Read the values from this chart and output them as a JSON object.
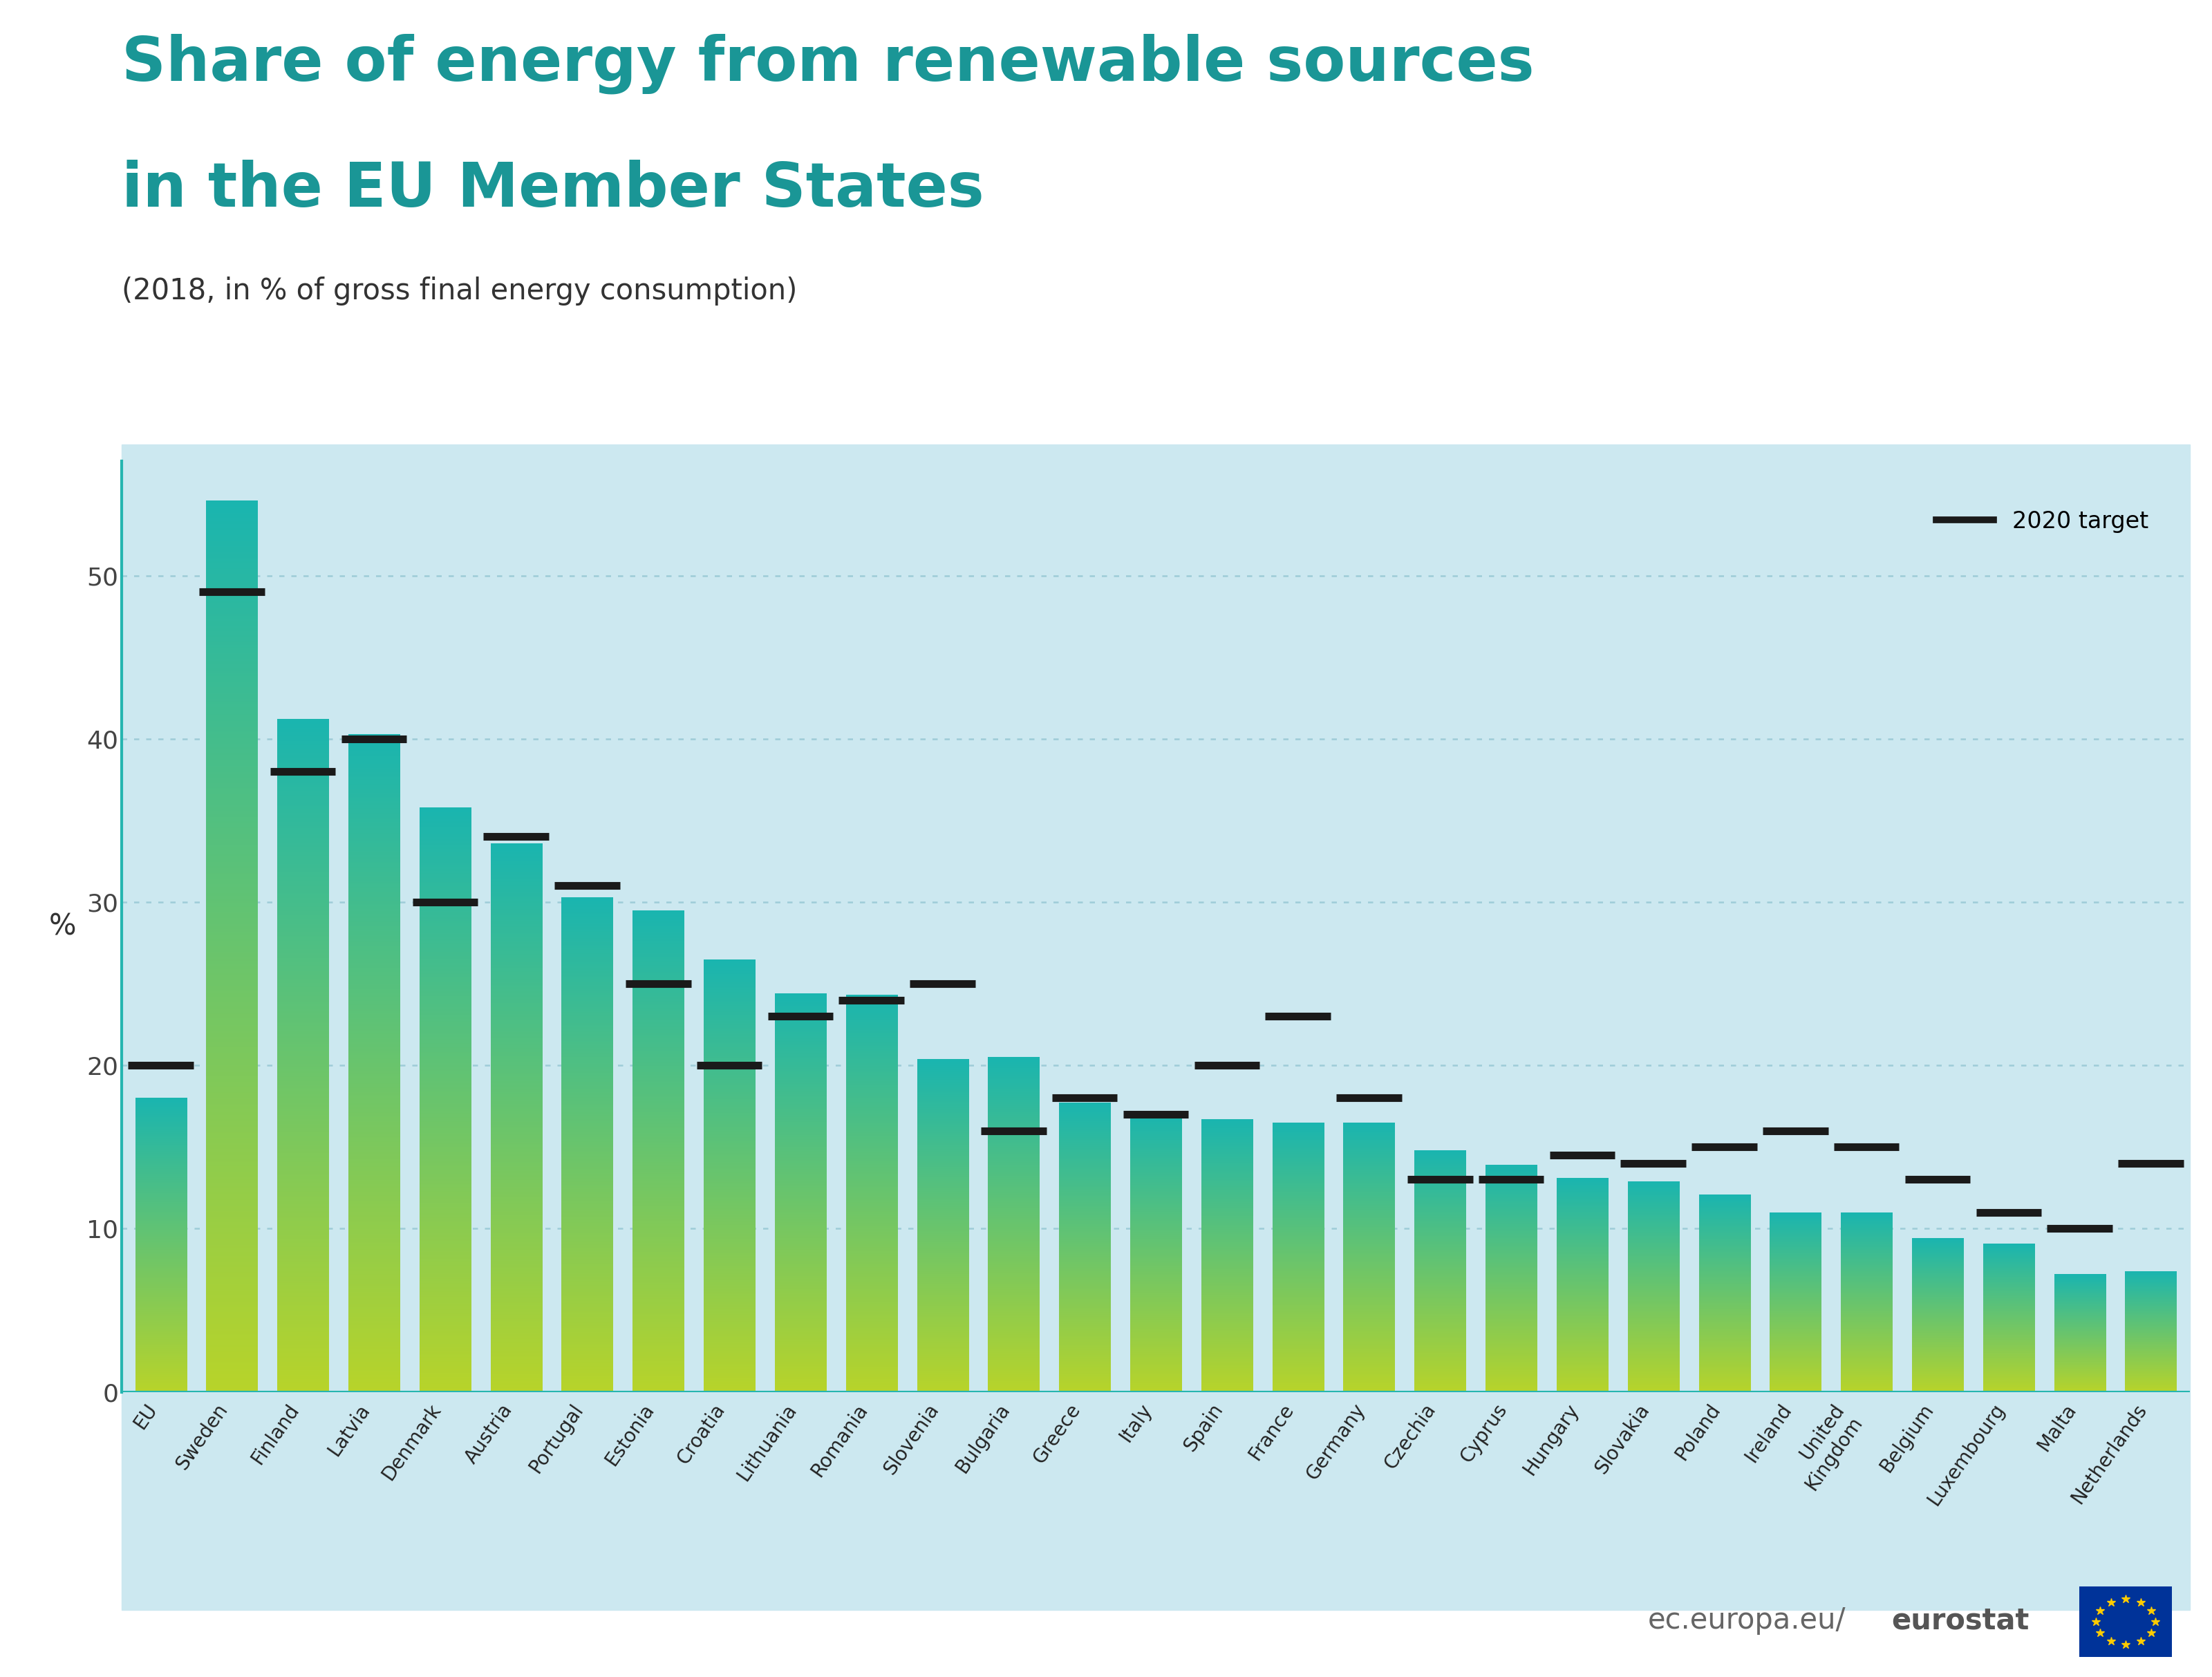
{
  "title_line1": "Share of energy from renewable sources",
  "title_line2": "in the EU Member States",
  "subtitle": "(2018, in % of gross final energy consumption)",
  "ylabel": "%",
  "title_color": "#1a9696",
  "background_color": "#ffffff",
  "plot_bg_color": "#cce8f0",
  "countries": [
    "EU",
    "Sweden",
    "Finland",
    "Latvia",
    "Denmark",
    "Austria",
    "Portugal",
    "Estonia",
    "Croatia",
    "Lithuania",
    "Romania",
    "Slovenia",
    "Bulgaria",
    "Greece",
    "Italy",
    "Spain",
    "France",
    "Germany",
    "Czechia",
    "Cyprus",
    "Hungary",
    "Slovakia",
    "Poland",
    "Ireland",
    "United\nKingdom",
    "Belgium",
    "Luxembourg",
    "Malta",
    "Netherlands"
  ],
  "values": [
    18.0,
    54.6,
    41.2,
    40.3,
    35.8,
    33.6,
    30.3,
    29.5,
    26.5,
    24.4,
    24.3,
    20.4,
    20.5,
    17.7,
    17.1,
    16.7,
    16.5,
    16.5,
    14.8,
    13.9,
    13.1,
    12.9,
    12.1,
    11.0,
    11.0,
    9.4,
    9.1,
    7.2,
    7.4
  ],
  "targets": [
    20.0,
    49.0,
    38.0,
    40.0,
    30.0,
    34.0,
    31.0,
    25.0,
    20.0,
    23.0,
    24.0,
    25.0,
    16.0,
    18.0,
    17.0,
    20.0,
    23.0,
    18.0,
    13.0,
    13.0,
    14.5,
    14.0,
    15.0,
    16.0,
    15.0,
    13.0,
    11.0,
    10.0,
    14.0
  ],
  "bar_top_color": "#1ab5b0",
  "bar_bottom_color": "#b8d42a",
  "ylim_min": 0,
  "ylim_max": 57,
  "yticks": [
    0,
    10,
    20,
    30,
    40,
    50
  ],
  "grid_color": "#9eccd8",
  "target_color": "#1a1a1a",
  "watermark_plain": "ec.europa.eu/",
  "watermark_bold": "eurostat",
  "legend_label": "2020 target",
  "axis_line_color": "#26b5b0",
  "bar_width": 0.72
}
